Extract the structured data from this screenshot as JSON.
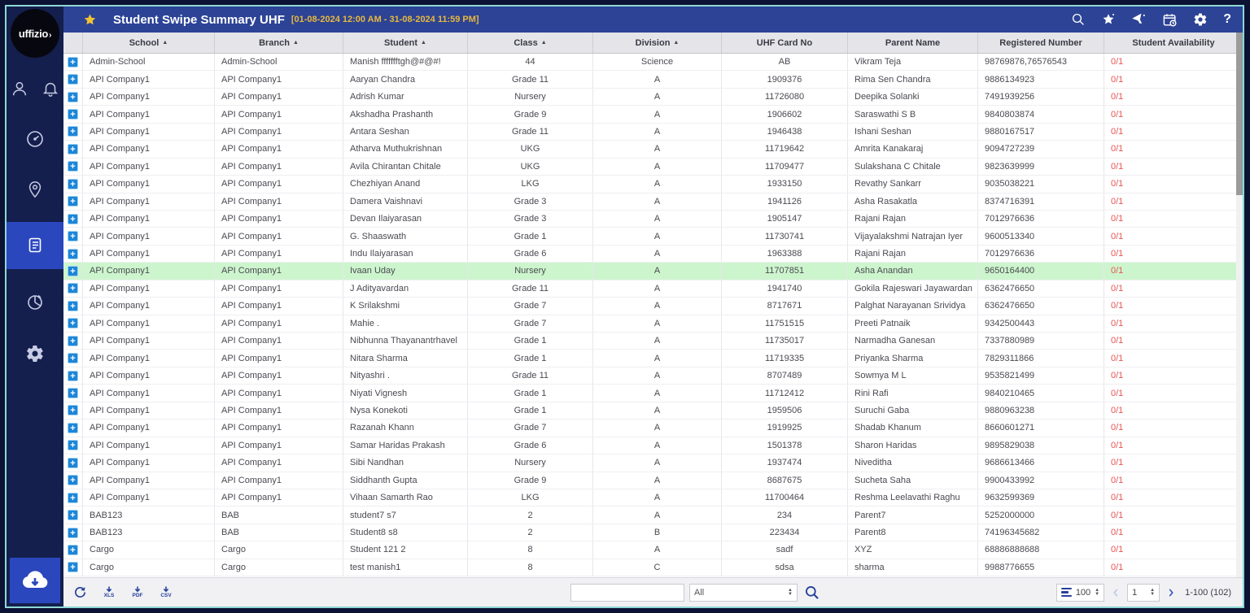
{
  "sidebar": {
    "logo_text": "uffizio",
    "icons": [
      "user",
      "notifications",
      "dashboard",
      "tracking",
      "reports",
      "analytics",
      "settings",
      "cloud-download"
    ],
    "active_icon": "reports"
  },
  "header": {
    "title": "Student Swipe Summary UHF",
    "date_range": "[01-08-2024 12:00 AM - 31-08-2024 11:59 PM]",
    "action_icons": [
      "search",
      "favorite",
      "filter",
      "calendar",
      "settings",
      "help"
    ],
    "help_label": "?"
  },
  "table": {
    "columns": [
      {
        "key": "expand",
        "label": "",
        "sortable": false
      },
      {
        "key": "school",
        "label": "School",
        "sortable": true
      },
      {
        "key": "branch",
        "label": "Branch",
        "sortable": true
      },
      {
        "key": "student",
        "label": "Student",
        "sortable": true
      },
      {
        "key": "class",
        "label": "Class",
        "sortable": true
      },
      {
        "key": "division",
        "label": "Division",
        "sortable": true
      },
      {
        "key": "uhf",
        "label": "UHF Card No",
        "sortable": false
      },
      {
        "key": "parent",
        "label": "Parent Name",
        "sortable": false
      },
      {
        "key": "registered",
        "label": "Registered Number",
        "sortable": false
      },
      {
        "key": "availability",
        "label": "Student Availability",
        "sortable": false
      }
    ],
    "highlighted_row_index": 12,
    "rows": [
      {
        "school": "Admin-School",
        "branch": "Admin-School",
        "student": "Manish ffffffftgh@#@#!",
        "class": "44",
        "division": "Science",
        "uhf": "AB",
        "parent": "Vikram Teja",
        "registered": "98769876,76576543",
        "availability": "0/1"
      },
      {
        "school": "API Company1",
        "branch": "API Company1",
        "student": "Aaryan Chandra",
        "class": "Grade 11",
        "division": "A",
        "uhf": "1909376",
        "parent": "Rima Sen Chandra",
        "registered": "9886134923",
        "availability": "0/1"
      },
      {
        "school": "API Company1",
        "branch": "API Company1",
        "student": "Adrish Kumar",
        "class": "Nursery",
        "division": "A",
        "uhf": "11726080",
        "parent": "Deepika Solanki",
        "registered": "7491939256",
        "availability": "0/1"
      },
      {
        "school": "API Company1",
        "branch": "API Company1",
        "student": "Akshadha Prashanth",
        "class": "Grade 9",
        "division": "A",
        "uhf": "1906602",
        "parent": "Saraswathi S B",
        "registered": "9840803874",
        "availability": "0/1"
      },
      {
        "school": "API Company1",
        "branch": "API Company1",
        "student": "Antara Seshan",
        "class": "Grade 11",
        "division": "A",
        "uhf": "1946438",
        "parent": "Ishani Seshan",
        "registered": "9880167517",
        "availability": "0/1"
      },
      {
        "school": "API Company1",
        "branch": "API Company1",
        "student": "Atharva Muthukrishnan",
        "class": "UKG",
        "division": "A",
        "uhf": "11719642",
        "parent": "Amrita Kanakaraj",
        "registered": "9094727239",
        "availability": "0/1"
      },
      {
        "school": "API Company1",
        "branch": "API Company1",
        "student": "Avila Chirantan Chitale",
        "class": "UKG",
        "division": "A",
        "uhf": "11709477",
        "parent": "Sulakshana C Chitale",
        "registered": "9823639999",
        "availability": "0/1"
      },
      {
        "school": "API Company1",
        "branch": "API Company1",
        "student": "Chezhiyan Anand",
        "class": "LKG",
        "division": "A",
        "uhf": "1933150",
        "parent": "Revathy Sankarr",
        "registered": "9035038221",
        "availability": "0/1"
      },
      {
        "school": "API Company1",
        "branch": "API Company1",
        "student": "Damera Vaishnavi",
        "class": "Grade 3",
        "division": "A",
        "uhf": "1941126",
        "parent": "Asha Rasakatla",
        "registered": "8374716391",
        "availability": "0/1"
      },
      {
        "school": "API Company1",
        "branch": "API Company1",
        "student": "Devan Ilaiyarasan",
        "class": "Grade 3",
        "division": "A",
        "uhf": "1905147",
        "parent": "Rajani Rajan",
        "registered": "7012976636",
        "availability": "0/1"
      },
      {
        "school": "API Company1",
        "branch": "API Company1",
        "student": "G. Shaaswath",
        "class": "Grade 1",
        "division": "A",
        "uhf": "11730741",
        "parent": "Vijayalakshmi Natrajan Iyer",
        "registered": "9600513340",
        "availability": "0/1"
      },
      {
        "school": "API Company1",
        "branch": "API Company1",
        "student": "Indu Ilaiyarasan",
        "class": "Grade 6",
        "division": "A",
        "uhf": "1963388",
        "parent": "Rajani Rajan",
        "registered": "7012976636",
        "availability": "0/1"
      },
      {
        "school": "API Company1",
        "branch": "API Company1",
        "student": "Ivaan Uday",
        "class": "Nursery",
        "division": "A",
        "uhf": "11707851",
        "parent": "Asha Anandan",
        "registered": "9650164400",
        "availability": "0/1"
      },
      {
        "school": "API Company1",
        "branch": "API Company1",
        "student": "J Adityavardan",
        "class": "Grade 11",
        "division": "A",
        "uhf": "1941740",
        "parent": "Gokila Rajeswari Jayawardan",
        "registered": "6362476650",
        "availability": "0/1"
      },
      {
        "school": "API Company1",
        "branch": "API Company1",
        "student": "K Srilakshmi",
        "class": "Grade 7",
        "division": "A",
        "uhf": "8717671",
        "parent": "Palghat Narayanan Srividya",
        "registered": "6362476650",
        "availability": "0/1"
      },
      {
        "school": "API Company1",
        "branch": "API Company1",
        "student": "Mahie .",
        "class": "Grade 7",
        "division": "A",
        "uhf": "11751515",
        "parent": "Preeti Patnaik",
        "registered": "9342500443",
        "availability": "0/1"
      },
      {
        "school": "API Company1",
        "branch": "API Company1",
        "student": "Nibhunna Thayanantrhavel",
        "class": "Grade 1",
        "division": "A",
        "uhf": "11735017",
        "parent": "Narmadha Ganesan",
        "registered": "7337880989",
        "availability": "0/1"
      },
      {
        "school": "API Company1",
        "branch": "API Company1",
        "student": "Nitara Sharma",
        "class": "Grade 1",
        "division": "A",
        "uhf": "11719335",
        "parent": "Priyanka Sharma",
        "registered": "7829311866",
        "availability": "0/1"
      },
      {
        "school": "API Company1",
        "branch": "API Company1",
        "student": "Nityashri .",
        "class": "Grade 11",
        "division": "A",
        "uhf": "8707489",
        "parent": "Sowmya M L",
        "registered": "9535821499",
        "availability": "0/1"
      },
      {
        "school": "API Company1",
        "branch": "API Company1",
        "student": "Niyati Vignesh",
        "class": "Grade 1",
        "division": "A",
        "uhf": "11712412",
        "parent": "Rini Rafi",
        "registered": "9840210465",
        "availability": "0/1"
      },
      {
        "school": "API Company1",
        "branch": "API Company1",
        "student": "Nysa Konekoti",
        "class": "Grade 1",
        "division": "A",
        "uhf": "1959506",
        "parent": "Suruchi Gaba",
        "registered": "9880963238",
        "availability": "0/1"
      },
      {
        "school": "API Company1",
        "branch": "API Company1",
        "student": "Razanah Khann",
        "class": "Grade 7",
        "division": "A",
        "uhf": "1919925",
        "parent": "Shadab Khanum",
        "registered": "8660601271",
        "availability": "0/1"
      },
      {
        "school": "API Company1",
        "branch": "API Company1",
        "student": "Samar Haridas Prakash",
        "class": "Grade 6",
        "division": "A",
        "uhf": "1501378",
        "parent": "Sharon Haridas",
        "registered": "9895829038",
        "availability": "0/1"
      },
      {
        "school": "API Company1",
        "branch": "API Company1",
        "student": "Sibi Nandhan",
        "class": "Nursery",
        "division": "A",
        "uhf": "1937474",
        "parent": "Niveditha",
        "registered": "9686613466",
        "availability": "0/1"
      },
      {
        "school": "API Company1",
        "branch": "API Company1",
        "student": "Siddhanth Gupta",
        "class": "Grade 9",
        "division": "A",
        "uhf": "8687675",
        "parent": "Sucheta Saha",
        "registered": "9900433992",
        "availability": "0/1"
      },
      {
        "school": "API Company1",
        "branch": "API Company1",
        "student": "Vihaan Samarth Rao",
        "class": "LKG",
        "division": "A",
        "uhf": "11700464",
        "parent": "Reshma Leelavathi Raghu",
        "registered": "9632599369",
        "availability": "0/1"
      },
      {
        "school": "BAB123",
        "branch": "BAB",
        "student": "student7 s7",
        "class": "2",
        "division": "A",
        "uhf": "234",
        "parent": "Parent7",
        "registered": "5252000000",
        "availability": "0/1"
      },
      {
        "school": "BAB123",
        "branch": "BAB",
        "student": "Student8 s8",
        "class": "2",
        "division": "B",
        "uhf": "223434",
        "parent": "Parent8",
        "registered": "74196345682",
        "availability": "0/1"
      },
      {
        "school": "Cargo",
        "branch": "Cargo",
        "student": "Student 121 2",
        "class": "8",
        "division": "A",
        "uhf": "sadf",
        "parent": "XYZ",
        "registered": "68886888688",
        "availability": "0/1"
      },
      {
        "school": "Cargo",
        "branch": "Cargo",
        "student": "test manish1",
        "class": "8",
        "division": "C",
        "uhf": "sdsa",
        "parent": "sharma",
        "registered": "9988776655",
        "availability": "0/1"
      }
    ]
  },
  "footer": {
    "exports": [
      "XLS",
      "PDF",
      "CSV"
    ],
    "search_value": "",
    "filter_selected": "All",
    "per_page": "100",
    "page": "1",
    "range_text": "1-100 (102)"
  },
  "colors": {
    "header_bar": "#2c4396",
    "sidebar": "#141f4e",
    "active_item": "#2a47bd",
    "highlight_row": "#cdf5cd",
    "availability_red": "#e85454",
    "plus_button": "#1d86d8",
    "star_gold": "#f2c230",
    "teal_border": "#8ed8d5"
  }
}
